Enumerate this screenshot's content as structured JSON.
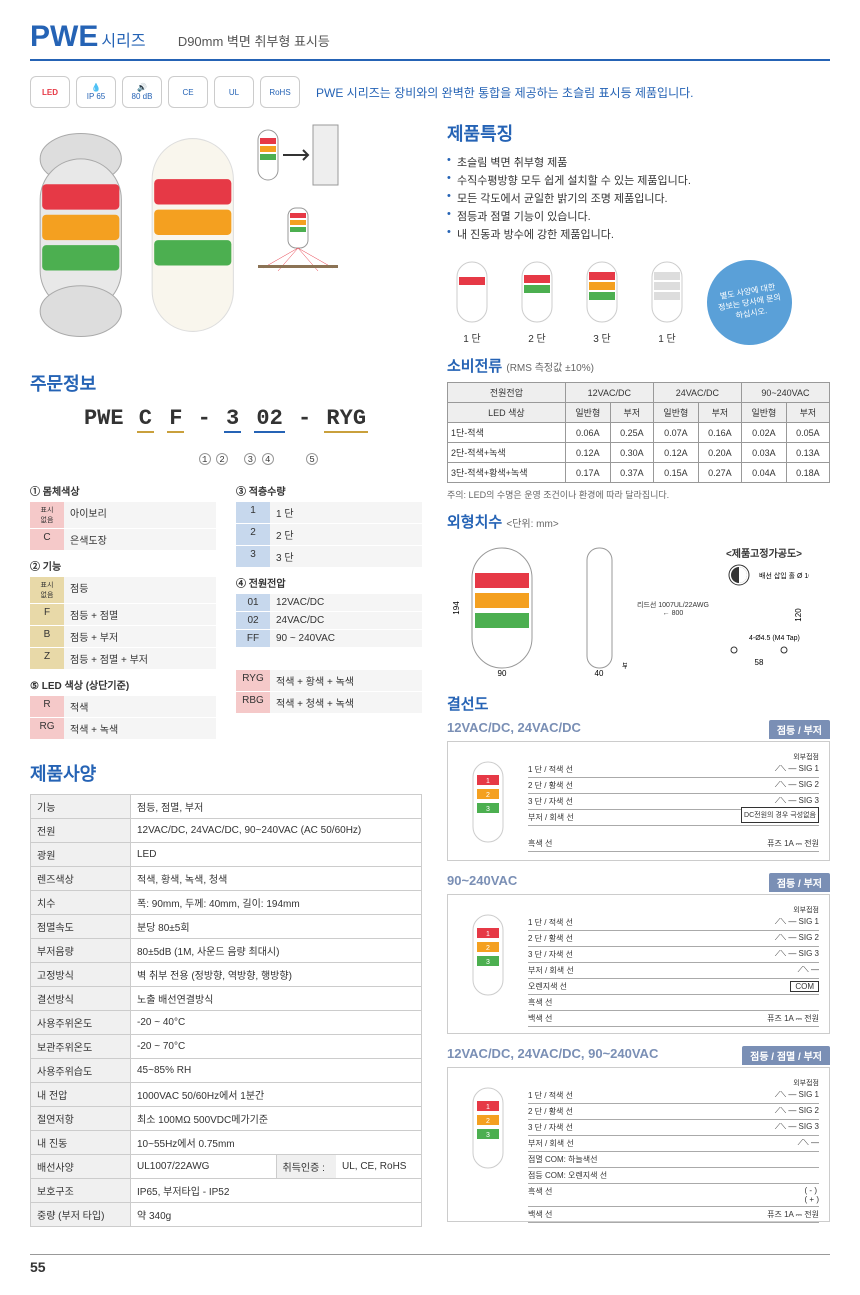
{
  "header": {
    "title": "PWE",
    "series": "시리즈",
    "desc": "D90mm 벽면 취부형 표시등"
  },
  "certs": {
    "led": "LED",
    "ip": "IP 65",
    "db": "80 dB",
    "ce": "CE",
    "ul": "UL",
    "rohs": "RoHS"
  },
  "intro": "PWE 시리즈는 장비와의 완벽한 통합을 제공하는 초슬림 표시등 제품입니다.",
  "features": {
    "title": "제품특징",
    "items": [
      "초슬림 벽면 취부형 제품",
      "수직수평방향 모두 쉽게 설치할 수 있는 제품입니다.",
      "모든 각도에서 균일한 밝기의 조명 제품입니다.",
      "점등과 점멸 기능이 있습니다.",
      "내 진동과 방수에 강한 제품입니다."
    ]
  },
  "tiers": {
    "t1": "1 단",
    "t2": "2 단",
    "t3": "3 단",
    "t4": "1 단"
  },
  "callout": "별도 사양에 대한 정보는 당사에 문의하십시오.",
  "order": {
    "title": "주문정보",
    "code": {
      "prefix": "PWE",
      "p1": "C",
      "p2": "F",
      "p3": "3",
      "p4": "02",
      "p5": "RYG"
    }
  },
  "legend": {
    "body": {
      "title": "① 몸체색상",
      "rows": [
        {
          "k": "표시\n없음",
          "v": "아이보리",
          "style": "pink"
        },
        {
          "k": "C",
          "v": "은색도장",
          "style": "pink"
        }
      ]
    },
    "func": {
      "title": "② 기능",
      "rows": [
        {
          "k": "표시\n없음",
          "v": "점등",
          "style": ""
        },
        {
          "k": "F",
          "v": "점등 + 점멸",
          "style": ""
        },
        {
          "k": "B",
          "v": "점등 + 부저",
          "style": ""
        },
        {
          "k": "Z",
          "v": "점등 + 점멸 + 부저",
          "style": ""
        }
      ]
    },
    "qty": {
      "title": "③ 적층수량",
      "rows": [
        {
          "k": "1",
          "v": "1 단",
          "style": "blue"
        },
        {
          "k": "2",
          "v": "2 단",
          "style": "blue"
        },
        {
          "k": "3",
          "v": "3 단",
          "style": "blue"
        }
      ]
    },
    "volt": {
      "title": "④ 전원전압",
      "rows": [
        {
          "k": "01",
          "v": "12VAC/DC",
          "style": "blue"
        },
        {
          "k": "02",
          "v": "24VAC/DC",
          "style": "blue"
        },
        {
          "k": "FF",
          "v": "90 ~ 240VAC",
          "style": "blue"
        }
      ]
    },
    "led": {
      "title": "⑤ LED 색상 (상단기준)",
      "rows": [
        {
          "k": "R",
          "v": "적색",
          "style": "pink"
        },
        {
          "k": "RG",
          "v": "적색 + 녹색",
          "style": "pink"
        },
        {
          "k": "RYG",
          "v": "적색 + 황색 + 녹색",
          "style": "pink"
        },
        {
          "k": "RBG",
          "v": "적색 + 청색 + 녹색",
          "style": "pink"
        }
      ]
    }
  },
  "power": {
    "title": "소비전류",
    "sub": "(RMS 측정값 ±10%)",
    "headers": {
      "volt": "전원전압",
      "v1": "12VAC/DC",
      "v2": "24VAC/DC",
      "v3": "90~240VAC",
      "led": "LED 색상",
      "normal": "일반형",
      "buzzer": "부저"
    },
    "rows": [
      {
        "name": "1단-적색",
        "c": [
          "0.06A",
          "0.25A",
          "0.07A",
          "0.16A",
          "0.02A",
          "0.05A"
        ]
      },
      {
        "name": "2단-적색+녹색",
        "c": [
          "0.12A",
          "0.30A",
          "0.12A",
          "0.20A",
          "0.03A",
          "0.13A"
        ]
      },
      {
        "name": "3단-적색+황색+녹색",
        "c": [
          "0.17A",
          "0.37A",
          "0.15A",
          "0.27A",
          "0.04A",
          "0.18A"
        ]
      }
    ],
    "note": "주의: LED의 수명은 운영 조건이나 환경에 따라 달라집니다."
  },
  "dims": {
    "title": "외형치수",
    "sub": "<단위: mm>",
    "mount_title": "<제품고정가공도>",
    "w": "90",
    "h": "194",
    "d": "40",
    "hole": "Ø 10",
    "tap": "4-Ø4.5\n(M4 Tap)",
    "lead": "리드선\n1007UL/22AWG",
    "mh": "120",
    "mw": "58",
    "side": "800"
  },
  "spec": {
    "title": "제품사양",
    "rows": [
      [
        "기능",
        "점등, 점멸, 부저"
      ],
      [
        "전원",
        "12VAC/DC, 24VAC/DC, 90~240VAC (AC 50/60Hz)"
      ],
      [
        "광원",
        "LED"
      ],
      [
        "렌즈색상",
        "적색, 황색, 녹색, 청색"
      ],
      [
        "치수",
        "폭: 90mm, 두께: 40mm, 길이: 194mm"
      ],
      [
        "점멸속도",
        "분당 80±5회"
      ],
      [
        "부저음량",
        "80±5dB (1M, 사운드 음량 최대시)"
      ],
      [
        "고정방식",
        "벽 취부 전용 (정방향, 역방향, 행방향)"
      ],
      [
        "결선방식",
        "노출 배선연결방식"
      ],
      [
        "사용주위온도",
        "-20 ~ 40°C"
      ],
      [
        "보관주위온도",
        "-20 ~ 70°C"
      ],
      [
        "사용주위습도",
        "45~85% RH"
      ],
      [
        "내 전압",
        "1000VAC 50/60Hz에서 1분간"
      ],
      [
        "절연저항",
        "최소 100MΩ 500VDC메가기준"
      ],
      [
        "내 진동",
        "10~55Hz에서 0.75mm"
      ],
      [
        "보호구조",
        "IP65, 부저타입 - IP52"
      ],
      [
        "중량 (부저 타입)",
        "약 340g"
      ]
    ],
    "wire_row": {
      "label": "배선사양",
      "v1": "UL1007/22AWG",
      "label2": "취득인증 :",
      "v2": "UL, CE, RoHS"
    }
  },
  "wiring": {
    "title": "결선도",
    "d1": {
      "title": "12VAC/DC, 24VAC/DC",
      "badge": "점등 / 부저",
      "lines": [
        "1 단 / 적색 선",
        "2 단 / 황색 선",
        "3 단 / 자색 선",
        "부저 / 회색 선"
      ],
      "sigs": [
        "SIG 1",
        "SIG 2",
        "SIG 3"
      ],
      "ext": "외부접점",
      "fuse": "퓨즈 1A",
      "pwr": "전원",
      "note": "DC전원의 경우 극성없음",
      "black": "흑색 선"
    },
    "d2": {
      "title": "90~240VAC",
      "badge": "점등 / 부저",
      "lines": [
        "1 단 / 적색 선",
        "2 단 / 황색 선",
        "3 단 / 자색 선",
        "부저 / 회색 선",
        "오렌지색 선",
        "흑색 선",
        "백색 선"
      ],
      "com": "COM",
      "fuse": "퓨즈 1A",
      "pwr": "전원"
    },
    "d3": {
      "title": "12VAC/DC, 24VAC/DC, 90~240VAC",
      "badge": "점등 / 점멸 / 부저",
      "lines": [
        "1 단 / 적색 선",
        "2 단 / 황색 선",
        "3 단 / 자색 선",
        "부저 / 회색 선"
      ],
      "extra": [
        "점멸 COM: 하늘색선",
        "점등 COM: 오렌지색 선",
        "흑색 선",
        "백색 선"
      ],
      "fuse": "퓨즈 1A",
      "pwr": "전원",
      "pol": "( - )\n( + )"
    }
  },
  "page_num": "55",
  "colors": {
    "red": "#e63946",
    "amber": "#f4a020",
    "green": "#4caf50",
    "blue": "#2563b5"
  }
}
